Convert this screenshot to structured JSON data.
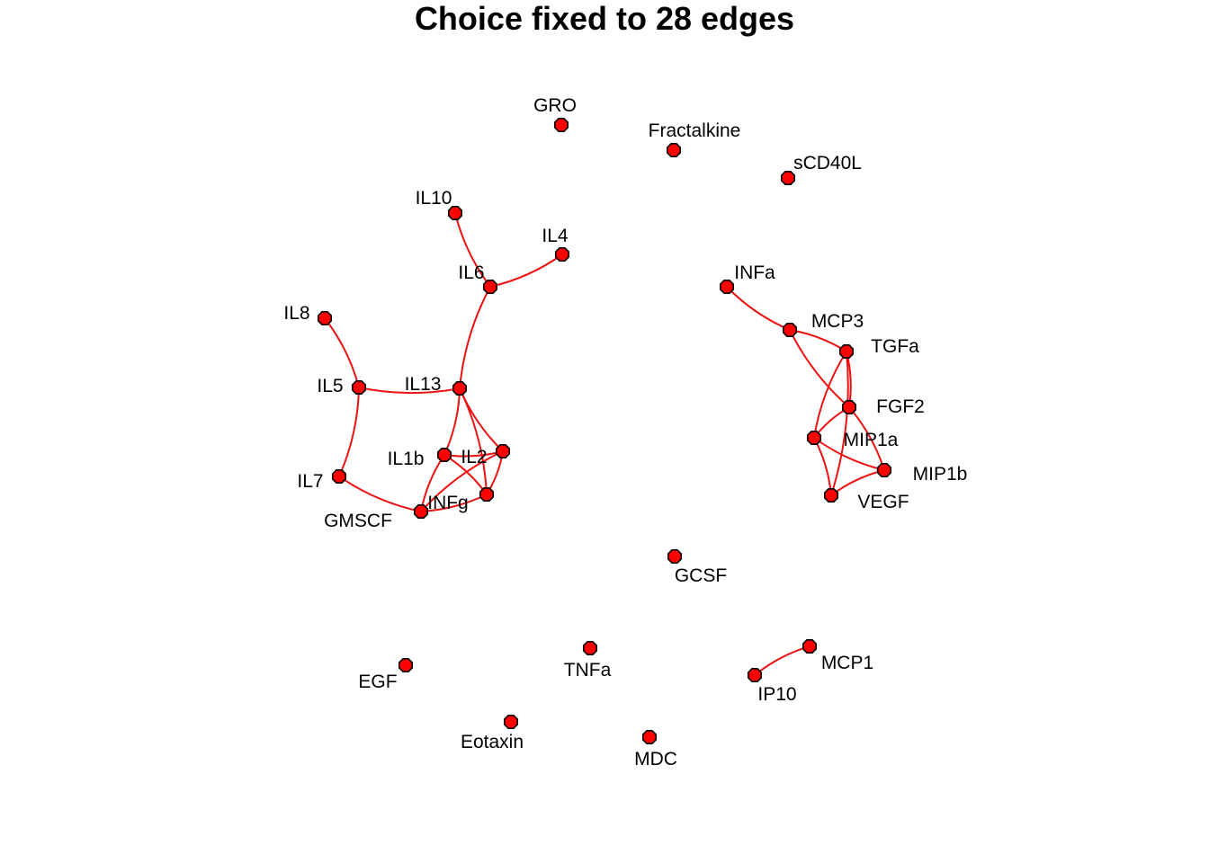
{
  "title": "Choice fixed to 28 edges",
  "colors": {
    "node_fill": "#ff0000",
    "node_border": "#000000",
    "edge": "#ee1111",
    "background": "#ffffff"
  },
  "nodes": [
    {
      "id": "GRO",
      "label": "GRO"
    },
    {
      "id": "Fractalkine",
      "label": "Fractalkine"
    },
    {
      "id": "sCD40L",
      "label": "sCD40L"
    },
    {
      "id": "IL10",
      "label": "IL10"
    },
    {
      "id": "IL4",
      "label": "IL4"
    },
    {
      "id": "IL6",
      "label": "IL6"
    },
    {
      "id": "INFa",
      "label": "INFa"
    },
    {
      "id": "IL8",
      "label": "IL8"
    },
    {
      "id": "MCP3",
      "label": "MCP3"
    },
    {
      "id": "TGFa",
      "label": "TGFa"
    },
    {
      "id": "IL5",
      "label": "IL5"
    },
    {
      "id": "IL13",
      "label": "IL13"
    },
    {
      "id": "FGF2",
      "label": "FGF2"
    },
    {
      "id": "MIP1a",
      "label": "MIP1a"
    },
    {
      "id": "IL1b",
      "label": "IL1b"
    },
    {
      "id": "IL2",
      "label": "IL2"
    },
    {
      "id": "MIP1b",
      "label": "MIP1b"
    },
    {
      "id": "IL7",
      "label": "IL7"
    },
    {
      "id": "INFg",
      "label": "INFg"
    },
    {
      "id": "VEGF",
      "label": "VEGF"
    },
    {
      "id": "GMSCF",
      "label": "GMSCF"
    },
    {
      "id": "GCSF",
      "label": "GCSF"
    },
    {
      "id": "TNFa",
      "label": "TNFa"
    },
    {
      "id": "MCP1",
      "label": "MCP1"
    },
    {
      "id": "EGF",
      "label": "EGF"
    },
    {
      "id": "IP10",
      "label": "IP10"
    },
    {
      "id": "Eotaxin",
      "label": "Eotaxin"
    },
    {
      "id": "MDC",
      "label": "MDC"
    }
  ],
  "edges": [
    [
      "IL10",
      "IL6"
    ],
    [
      "IL4",
      "IL6"
    ],
    [
      "IL6",
      "IL13"
    ],
    [
      "IL8",
      "IL5"
    ],
    [
      "IL5",
      "IL13"
    ],
    [
      "IL5",
      "IL7"
    ],
    [
      "IL7",
      "GMSCF"
    ],
    [
      "IL13",
      "IL1b"
    ],
    [
      "IL13",
      "IL2"
    ],
    [
      "IL13",
      "INFg"
    ],
    [
      "IL1b",
      "IL2"
    ],
    [
      "IL1b",
      "INFg"
    ],
    [
      "IL1b",
      "GMSCF"
    ],
    [
      "IL2",
      "INFg"
    ],
    [
      "IL2",
      "GMSCF"
    ],
    [
      "INFg",
      "GMSCF"
    ],
    [
      "INFa",
      "MCP3"
    ],
    [
      "MCP3",
      "TGFa"
    ],
    [
      "MCP3",
      "FGF2"
    ],
    [
      "TGFa",
      "FGF2"
    ],
    [
      "TGFa",
      "MIP1a"
    ],
    [
      "TGFa",
      "VEGF"
    ],
    [
      "FGF2",
      "MIP1a"
    ],
    [
      "FGF2",
      "MIP1b"
    ],
    [
      "MIP1a",
      "MIP1b"
    ],
    [
      "MIP1a",
      "VEGF"
    ],
    [
      "MIP1b",
      "VEGF"
    ],
    [
      "IP10",
      "MCP1"
    ]
  ]
}
